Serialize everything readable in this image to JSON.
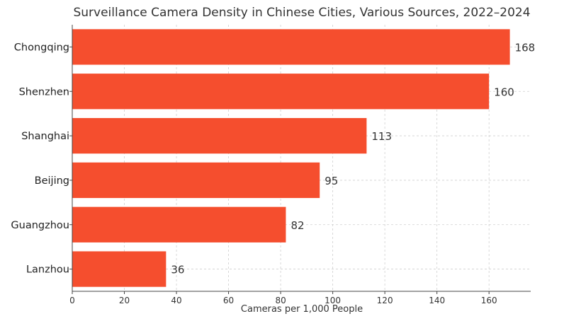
{
  "chart_data": {
    "type": "bar",
    "orientation": "horizontal",
    "title": "Surveillance Camera Density in Chinese Cities, Various Sources, 2022–2024",
    "xlabel": "Cameras per 1,000 People",
    "ylabel": "",
    "categories": [
      "Chongqing",
      "Shenzhen",
      "Shanghai",
      "Beijing",
      "Guangzhou",
      "Lanzhou"
    ],
    "values": [
      168,
      160,
      113,
      95,
      82,
      36
    ],
    "data_labels": [
      "168",
      "160",
      "113",
      "95",
      "82",
      "36"
    ],
    "xlim": [
      0,
      176
    ],
    "xticks": [
      0,
      20,
      40,
      60,
      80,
      100,
      120,
      140,
      160
    ],
    "grid": true,
    "bar_color": "#f54e2e"
  }
}
